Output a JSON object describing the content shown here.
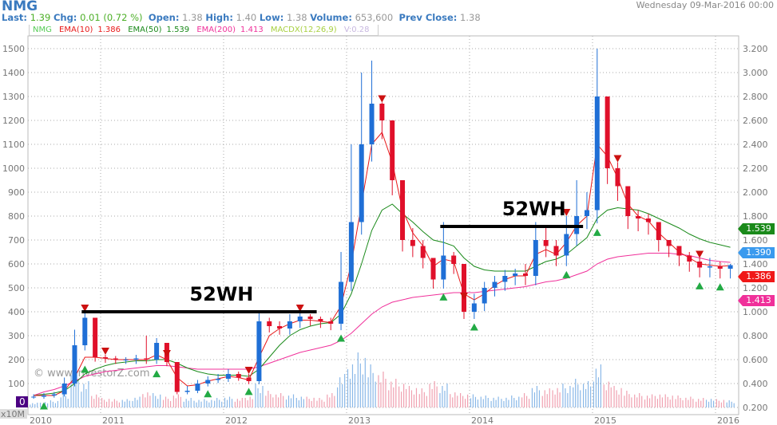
{
  "header": {
    "symbol": "NMG",
    "date": "Wednesday 09-Mar-2016 00:00",
    "last_label": "Last:",
    "last": "1.39",
    "chg_label": "Chg:",
    "chg": "0.01 (0.72 %)",
    "open_label": "Open:",
    "open": "1.38",
    "high_label": "High:",
    "high": "1.40",
    "low_label": "Low:",
    "low": "1.38",
    "volume_label": "Volume:",
    "volume": "653,600",
    "prev_label": "Prev Close:",
    "prev": "1.38"
  },
  "legend": {
    "symbol": "NMG",
    "ema10": "EMA(10)",
    "ema10_val": "1.386",
    "ema50": "EMA(50)",
    "ema50_val": "1.539",
    "ema200": "EMA(200)",
    "ema200_val": "1.413",
    "macd": "MACDX(12,26,9)",
    "vol": "V:0.28"
  },
  "tags": {
    "ema50": "1.539",
    "last": "1.390",
    "ema10": "1.386",
    "ema200": "1.413"
  },
  "watermark": "© www.investorZ.com",
  "left_axis_unit": "x10M",
  "chart_data": {
    "type": "candlestick",
    "colors": {
      "up": "#1f6fd6",
      "down": "#e0102a",
      "ema10": "#e81818",
      "ema50": "#1a8a1a",
      "ema200": "#f0309a",
      "buy": "#22aa44",
      "sell": "#cc1111",
      "grid": "#999999"
    },
    "right_axis": {
      "range": [
        0.2,
        3.2
      ],
      "ticks": [
        "0.200",
        "0.400",
        "0.600",
        "0.800",
        "1.000",
        "1.200",
        "1.400",
        "1.600",
        "1.800",
        "2.000",
        "2.200",
        "2.400",
        "2.600",
        "2.800",
        "3.000",
        "3.200"
      ]
    },
    "left_axis": {
      "ticks": [
        "0",
        "100",
        "200",
        "300",
        "400",
        "500",
        "600",
        "700",
        "800",
        "900",
        "1000",
        "1100",
        "1200",
        "1300",
        "1400",
        "1500"
      ]
    },
    "x_ticks": [
      "2010",
      "2011",
      "2012",
      "2013",
      "2014",
      "2015",
      "2016"
    ],
    "start": "2010-06",
    "close": [
      0.29,
      0.3,
      0.31,
      0.4,
      0.72,
      0.95,
      0.62,
      0.61,
      0.6,
      0.6,
      0.61,
      0.6,
      0.74,
      0.58,
      0.33,
      0.34,
      0.4,
      0.43,
      0.44,
      0.48,
      0.45,
      0.42,
      0.92,
      0.88,
      0.86,
      0.92,
      0.96,
      0.94,
      0.92,
      0.9,
      1.25,
      1.75,
      2.4,
      2.74,
      2.6,
      2.1,
      1.6,
      1.55,
      1.45,
      1.27,
      1.47,
      1.4,
      1.0,
      1.07,
      1.2,
      1.25,
      1.3,
      1.32,
      1.3,
      1.6,
      1.55,
      1.47,
      1.65,
      1.8,
      1.85,
      2.8,
      2.2,
      2.05,
      1.8,
      1.78,
      1.75,
      1.6,
      1.55,
      1.47,
      1.42,
      1.37,
      1.38,
      1.36,
      1.39
    ],
    "high": [
      0.31,
      0.32,
      0.33,
      0.45,
      0.85,
      1.0,
      0.8,
      0.64,
      0.63,
      0.62,
      0.64,
      0.8,
      0.78,
      0.62,
      0.45,
      0.38,
      0.43,
      0.46,
      0.48,
      0.52,
      0.5,
      0.48,
      1.0,
      0.95,
      0.92,
      0.98,
      1.0,
      0.98,
      0.96,
      0.95,
      1.5,
      2.4,
      3.0,
      3.1,
      2.75,
      2.4,
      1.8,
      1.7,
      1.6,
      1.45,
      1.75,
      1.5,
      1.1,
      1.15,
      1.25,
      1.3,
      1.35,
      1.36,
      1.4,
      1.75,
      1.7,
      1.6,
      1.8,
      2.1,
      2.0,
      3.2,
      2.6,
      2.25,
      2.0,
      1.85,
      1.82,
      1.7,
      1.6,
      1.55,
      1.5,
      1.45,
      1.45,
      1.42,
      1.4
    ],
    "ema10": [
      0.3,
      0.3,
      0.3,
      0.34,
      0.45,
      0.62,
      0.62,
      0.61,
      0.6,
      0.6,
      0.6,
      0.6,
      0.64,
      0.6,
      0.45,
      0.38,
      0.39,
      0.42,
      0.44,
      0.46,
      0.45,
      0.43,
      0.62,
      0.8,
      0.86,
      0.9,
      0.93,
      0.93,
      0.92,
      0.91,
      1.05,
      1.4,
      1.9,
      2.4,
      2.5,
      2.25,
      1.85,
      1.66,
      1.55,
      1.38,
      1.44,
      1.42,
      1.15,
      1.1,
      1.15,
      1.22,
      1.27,
      1.3,
      1.3,
      1.48,
      1.52,
      1.48,
      1.58,
      1.72,
      1.8,
      2.4,
      2.3,
      2.12,
      1.9,
      1.8,
      1.76,
      1.66,
      1.58,
      1.5,
      1.45,
      1.4,
      1.39,
      1.38,
      1.386
    ],
    "ema50": [
      0.3,
      0.31,
      0.32,
      0.34,
      0.4,
      0.48,
      0.52,
      0.55,
      0.57,
      0.58,
      0.59,
      0.59,
      0.6,
      0.6,
      0.57,
      0.53,
      0.5,
      0.48,
      0.47,
      0.47,
      0.47,
      0.46,
      0.52,
      0.62,
      0.72,
      0.8,
      0.85,
      0.88,
      0.9,
      0.91,
      0.98,
      1.15,
      1.4,
      1.68,
      1.85,
      1.9,
      1.82,
      1.75,
      1.67,
      1.6,
      1.58,
      1.55,
      1.45,
      1.38,
      1.35,
      1.34,
      1.34,
      1.34,
      1.34,
      1.38,
      1.42,
      1.44,
      1.48,
      1.55,
      1.62,
      1.78,
      1.85,
      1.87,
      1.86,
      1.85,
      1.82,
      1.78,
      1.74,
      1.7,
      1.65,
      1.61,
      1.58,
      1.56,
      1.539
    ],
    "ema200": [
      0.3,
      0.33,
      0.35,
      0.38,
      0.42,
      0.46,
      0.48,
      0.5,
      0.51,
      0.52,
      0.53,
      0.54,
      0.55,
      0.55,
      0.54,
      0.53,
      0.52,
      0.52,
      0.52,
      0.52,
      0.52,
      0.52,
      0.54,
      0.57,
      0.6,
      0.63,
      0.66,
      0.68,
      0.7,
      0.72,
      0.76,
      0.82,
      0.9,
      0.98,
      1.04,
      1.08,
      1.1,
      1.12,
      1.13,
      1.14,
      1.15,
      1.16,
      1.16,
      1.16,
      1.17,
      1.18,
      1.19,
      1.2,
      1.21,
      1.23,
      1.25,
      1.26,
      1.28,
      1.31,
      1.34,
      1.4,
      1.44,
      1.46,
      1.47,
      1.48,
      1.49,
      1.49,
      1.49,
      1.48,
      1.47,
      1.45,
      1.43,
      1.42,
      1.413
    ],
    "volume": [
      20,
      25,
      30,
      60,
      150,
      110,
      60,
      40,
      35,
      35,
      45,
      70,
      60,
      45,
      55,
      40,
      35,
      35,
      40,
      45,
      40,
      50,
      100,
      70,
      60,
      55,
      50,
      45,
      40,
      60,
      140,
      200,
      230,
      180,
      150,
      120,
      110,
      90,
      80,
      110,
      100,
      70,
      60,
      55,
      50,
      45,
      45,
      50,
      60,
      90,
      80,
      90,
      100,
      120,
      110,
      180,
      120,
      90,
      70,
      60,
      55,
      60,
      55,
      50,
      45,
      40,
      40,
      35,
      30
    ],
    "annotations": [
      {
        "text": "52WH",
        "level": 1.0,
        "from": "2010-11",
        "to": "2012-09"
      },
      {
        "text": "52WH",
        "level": 1.713,
        "from": "2013-10",
        "to": "2014-11"
      }
    ],
    "buy_signals": [
      "2010-07",
      "2010-11",
      "2011-06",
      "2011-11",
      "2012-03",
      "2012-12",
      "2013-10",
      "2014-01",
      "2014-10",
      "2015-01",
      "2015-11",
      "2016-01"
    ],
    "sell_signals": [
      "2010-11",
      "2011-01",
      "2011-07",
      "2012-03",
      "2012-08",
      "2013-04",
      "2013-12",
      "2014-10",
      "2015-03",
      "2015-11"
    ]
  }
}
